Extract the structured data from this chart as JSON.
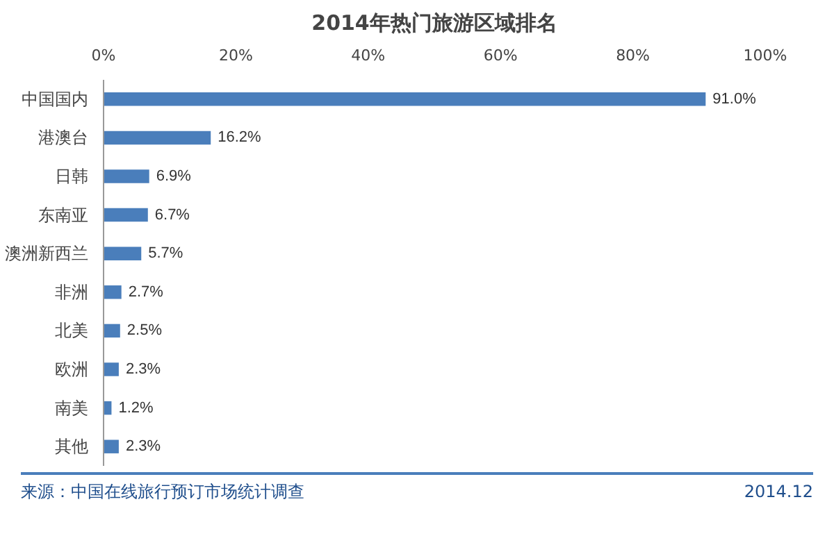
{
  "chart_data": {
    "type": "bar",
    "orientation": "horizontal",
    "title": "2014年热门旅游区域排名",
    "categories": [
      "中国国内",
      "港澳台",
      "日韩",
      "东南亚",
      "澳洲新西兰",
      "非洲",
      "北美",
      "欧洲",
      "南美",
      "其他"
    ],
    "values": [
      91.0,
      16.2,
      6.9,
      6.7,
      5.7,
      2.7,
      2.5,
      2.3,
      1.2,
      2.3
    ],
    "value_labels": [
      "91.0%",
      "16.2%",
      "6.9%",
      "6.7%",
      "5.7%",
      "2.7%",
      "2.5%",
      "2.3%",
      "1.2%",
      "2.3%"
    ],
    "color": "#4a7ebb",
    "xlim": [
      0,
      100
    ],
    "xticks": [
      {
        "value": 0,
        "label": "0%"
      },
      {
        "value": 20,
        "label": "20%"
      },
      {
        "value": 40,
        "label": "40%"
      },
      {
        "value": 60,
        "label": "60%"
      },
      {
        "value": 80,
        "label": "80%"
      },
      {
        "value": 100,
        "label": "100%"
      }
    ],
    "grid": false,
    "annotations": [
      "来源：中国在线旅行预订市场统计调查",
      "2014.12"
    ]
  }
}
